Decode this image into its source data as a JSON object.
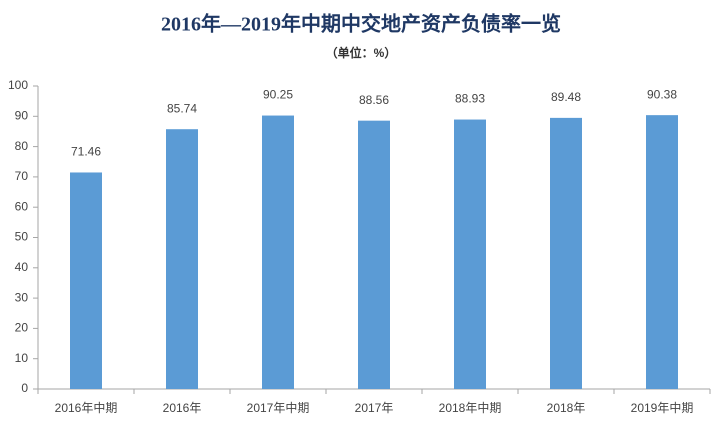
{
  "chart_data": {
    "type": "bar",
    "title": "2016年—2019年中期中交地产资产负债率一览",
    "subtitle": "（单位：%）",
    "categories": [
      "2016年中期",
      "2016年",
      "2017年中期",
      "2017年",
      "2018年中期",
      "2018年",
      "2019年中期"
    ],
    "values": [
      71.46,
      85.74,
      90.25,
      88.56,
      88.93,
      89.48,
      90.38
    ],
    "color": "#5b9bd5",
    "ylim": [
      0,
      100
    ],
    "yticks": [
      0,
      10,
      20,
      30,
      40,
      50,
      60,
      70,
      80,
      90,
      100
    ],
    "grid": false
  }
}
